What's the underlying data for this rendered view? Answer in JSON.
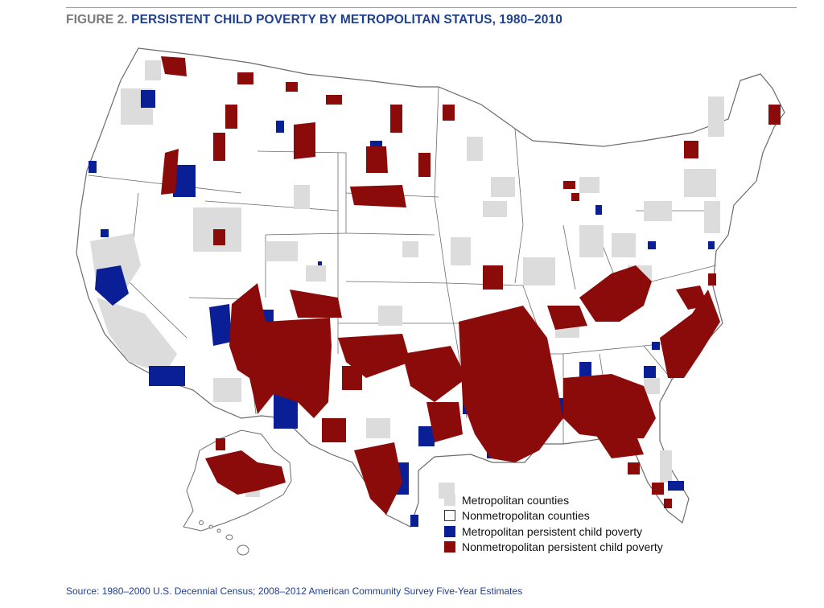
{
  "figure": {
    "label": "FIGURE 2.",
    "title": "PERSISTENT CHILD POVERTY BY METROPOLITAN STATUS, 1980–2010"
  },
  "legend": {
    "items": [
      {
        "label": "Metropolitan counties",
        "color": "#dcdcdc",
        "border": "#dcdcdc"
      },
      {
        "label": "Nonmetropolitan counties",
        "color": "#ffffff",
        "border": "#333333"
      },
      {
        "label": "Metropolitan persistent child poverty",
        "color": "#0a1f96",
        "border": "#0a1f96"
      },
      {
        "label": "Nonmetropolitan persistent child poverty",
        "color": "#8b0a0a",
        "border": "#8b0a0a"
      }
    ]
  },
  "source": "Source: 1980–2000 U.S. Decennial Census; 2008–2012 American Community Survey Five-Year Estimates",
  "colors": {
    "metro": "#dcdcdc",
    "nonmetro": "#ffffff",
    "metro_poverty": "#0a1f96",
    "nonmetro_poverty": "#8b0a0a",
    "border": "#6b6b6b",
    "title_blue": "#1f3f8f"
  }
}
